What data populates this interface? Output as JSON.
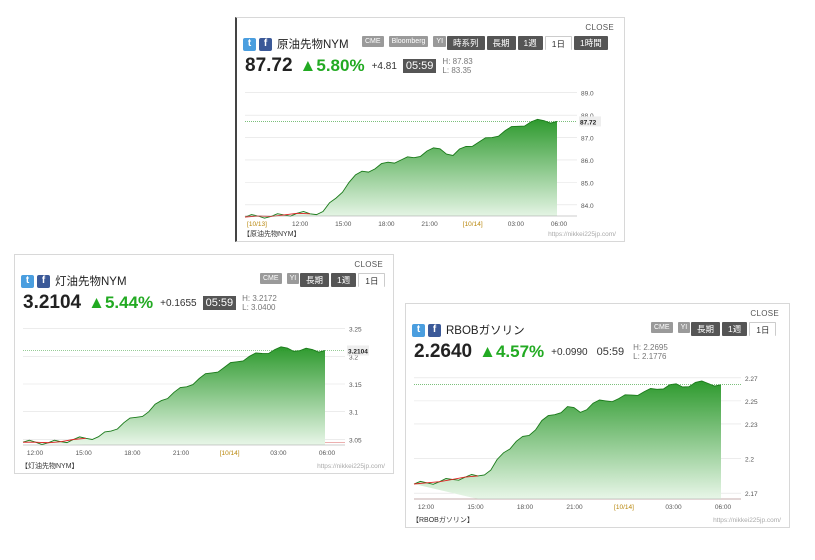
{
  "widgets": [
    {
      "id": "w1",
      "close": "CLOSE",
      "title": "原油先物NYM",
      "tags": [
        "CME",
        "Bloomberg",
        "YI"
      ],
      "tabs": [
        "時系列",
        "長期",
        "1週",
        "1日",
        "1時間"
      ],
      "active_tab": "1日",
      "price": "87.72",
      "change_pct": "▲5.80%",
      "change_abs": "+4.81",
      "time": "05:59",
      "high": "H: 87.83",
      "low": "L: 83.35",
      "footer": "【原油先物NYM】",
      "credit": "https://nikkei225jp.com/"
    },
    {
      "id": "w2",
      "close": "CLOSE",
      "title": "灯油先物NYM",
      "tags": [
        "CME",
        "YI"
      ],
      "tabs": [
        "長期",
        "1週",
        "1日"
      ],
      "active_tab": "1日",
      "price": "3.2104",
      "change_pct": "▲5.44%",
      "change_abs": "+0.1655",
      "time": "05:59",
      "high": "H: 3.2172",
      "low": "L: 3.0400",
      "footer": "【灯油先物NYM】",
      "credit": "https://nikkei225jp.com/"
    },
    {
      "id": "w3",
      "close": "CLOSE",
      "title": "RBOBガソリン",
      "tags": [
        "CME",
        "YI"
      ],
      "tabs": [
        "長期",
        "1週",
        "1日"
      ],
      "active_tab": "1日",
      "price": "2.2640",
      "change_pct": "▲4.57%",
      "change_abs": "+0.0990",
      "time": "05:59",
      "high": "H: 2.2695",
      "low": "L: 2.1776",
      "footer": "【RBOBガソリン】",
      "credit": "https://nikkei225jp.com/"
    }
  ],
  "colors": {
    "up": "#22aa22",
    "down": "#dd2222",
    "line": "#1a7a1a",
    "tab_bg": "#555555",
    "tag_bg": "#9a9a9a",
    "twitter": "#4a9edf",
    "facebook": "#3b5998"
  },
  "icons": [
    "twitter-icon",
    "facebook-icon"
  ],
  "chart_data": [
    {
      "type": "area",
      "title": "原油先物NYM",
      "xlabel": "",
      "ylabel": "",
      "x_ticks": [
        "[10/13]",
        "12:00",
        "15:00",
        "18:00",
        "21:00",
        "[10/14]",
        "03:00",
        "06:00"
      ],
      "y_ticks": [
        84.0,
        85.0,
        86.0,
        87.0,
        88.0,
        89.0
      ],
      "ylim": [
        83.5,
        89.3
      ],
      "prev_close": 82.91,
      "last_label": "87.72",
      "x": [
        0,
        1,
        2,
        3,
        4,
        5,
        6,
        7,
        8,
        9,
        10,
        11,
        12,
        13,
        14,
        15,
        16,
        17,
        18,
        19,
        20,
        21,
        22,
        23,
        24
      ],
      "values": [
        83.45,
        83.5,
        83.48,
        83.55,
        83.62,
        83.6,
        83.7,
        84.3,
        85.0,
        85.5,
        85.6,
        85.9,
        86.0,
        86.1,
        86.4,
        86.5,
        86.2,
        86.6,
        86.8,
        87.0,
        87.3,
        87.5,
        87.7,
        87.75,
        87.72
      ],
      "grid": true,
      "legend": "none"
    },
    {
      "type": "area",
      "title": "灯油先物NYM",
      "xlabel": "",
      "ylabel": "",
      "x_ticks": [
        "12:00",
        "15:00",
        "18:00",
        "21:00",
        "[10/14]",
        "03:00",
        "06:00"
      ],
      "y_ticks": [
        3.05,
        3.1,
        3.15,
        3.2,
        3.25
      ],
      "ylim": [
        3.04,
        3.26
      ],
      "prev_close": 3.0449,
      "last_label": "3.2104",
      "x": [
        0,
        1,
        2,
        3,
        4,
        5,
        6,
        7,
        8,
        9,
        10,
        11,
        12,
        13,
        14,
        15,
        16,
        17,
        18,
        19,
        20,
        21,
        22,
        23,
        24
      ],
      "values": [
        3.045,
        3.045,
        3.044,
        3.046,
        3.05,
        3.052,
        3.055,
        3.065,
        3.08,
        3.09,
        3.1,
        3.12,
        3.135,
        3.145,
        3.16,
        3.17,
        3.18,
        3.19,
        3.2,
        3.205,
        3.212,
        3.215,
        3.21,
        3.212,
        3.2104
      ],
      "grid": true,
      "legend": "none"
    },
    {
      "type": "area",
      "title": "RBOBガソリン",
      "xlabel": "",
      "ylabel": "",
      "x_ticks": [
        "12:00",
        "15:00",
        "18:00",
        "21:00",
        "[10/14]",
        "03:00",
        "06:00"
      ],
      "y_ticks": [
        2.17,
        2.2,
        2.23,
        2.25,
        2.27
      ],
      "ylim": [
        2.165,
        2.275
      ],
      "prev_close": 2.165,
      "last_label": "",
      "x": [
        0,
        1,
        2,
        3,
        4,
        5,
        6,
        7,
        8,
        9,
        10,
        11,
        12,
        13,
        14,
        15,
        16,
        17,
        18,
        19,
        20,
        21,
        22,
        23,
        24
      ],
      "values": [
        2.178,
        2.179,
        2.18,
        2.182,
        2.184,
        2.185,
        2.19,
        2.205,
        2.215,
        2.22,
        2.233,
        2.238,
        2.245,
        2.24,
        2.248,
        2.25,
        2.252,
        2.255,
        2.258,
        2.26,
        2.264,
        2.262,
        2.266,
        2.265,
        2.264
      ],
      "grid": true,
      "legend": "none"
    }
  ]
}
